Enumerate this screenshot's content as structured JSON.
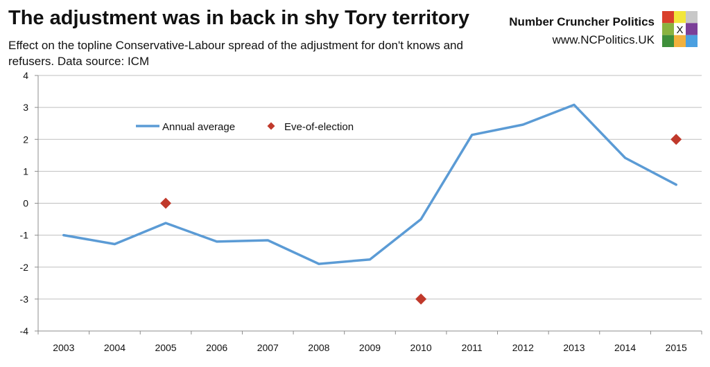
{
  "header": {
    "title": "The adjustment was in back in shy Tory territory",
    "subtitle": "Effect on the topline Conservative-Labour spread of the adjustment for don't knows and refusers. Data source: ICM"
  },
  "brand": {
    "name": "Number Cruncher Politics",
    "url": "www.NCPolitics.UK",
    "logo_mark": "X",
    "logo_colors": [
      "#d9402b",
      "#f2e63a",
      "#c8c8c8",
      "#8ab33f",
      "#ffffff",
      "#7b3f98",
      "#3f8f3a",
      "#f2b13d",
      "#4b9fe0"
    ]
  },
  "chart_data": {
    "type": "line",
    "title": "The adjustment was in back in shy Tory territory",
    "xlabel": "",
    "ylabel": "",
    "ylim": [
      -4,
      4
    ],
    "yticks": [
      -4,
      -3,
      -2,
      -1,
      0,
      1,
      2,
      3,
      4
    ],
    "grid": "horizontal",
    "legend_position": "top-left",
    "categories": [
      "2003",
      "2004",
      "2005",
      "2006",
      "2007",
      "2008",
      "2009",
      "2010",
      "2011",
      "2012",
      "2013",
      "2014",
      "2015"
    ],
    "series": [
      {
        "name": "Annual average",
        "kind": "line",
        "color": "#5b9bd5",
        "values": [
          -1.0,
          -1.28,
          -0.62,
          -1.2,
          -1.16,
          -1.9,
          -1.76,
          -0.5,
          2.14,
          2.46,
          3.08,
          1.42,
          0.58
        ]
      },
      {
        "name": "Eve-of-election",
        "kind": "marker",
        "color": "#c0392b",
        "points": [
          {
            "x": "2005",
            "y": 0
          },
          {
            "x": "2010",
            "y": -3
          },
          {
            "x": "2015",
            "y": 2
          }
        ]
      }
    ]
  }
}
